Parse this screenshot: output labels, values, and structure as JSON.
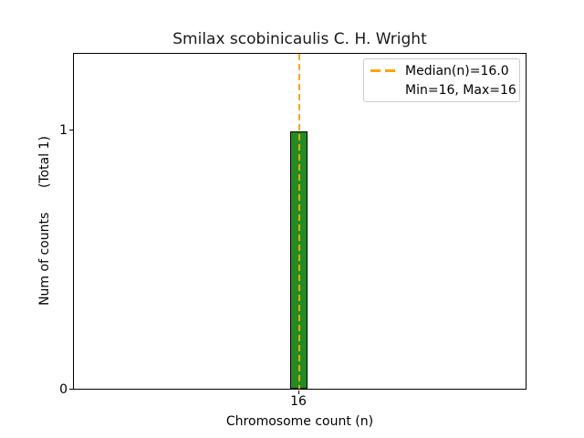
{
  "chart_data": {
    "type": "bar",
    "title": "Smilax scobinicaulis C. H. Wright",
    "xlabel": "Chromosome count (n)",
    "ylabel": "Num of counts      (Total 1)",
    "categories": [
      "16"
    ],
    "values": [
      1
    ],
    "total_counts": 1,
    "x_tick_labels": [
      "16"
    ],
    "y_tick_labels": [
      "0",
      "1"
    ],
    "ylim": [
      0,
      1.3
    ],
    "median": 16.0,
    "min": 16,
    "max": 16,
    "legend": {
      "position": "upper right",
      "items": [
        "Median(n)=16.0",
        "Min=16, Max=16"
      ]
    },
    "grid": false,
    "colors": {
      "bar_fill": "#228B22",
      "bar_edge": "#000000",
      "median_line": "#FFA500",
      "legend_border": "#cccccc",
      "text": "#000000",
      "background": "#ffffff"
    }
  }
}
